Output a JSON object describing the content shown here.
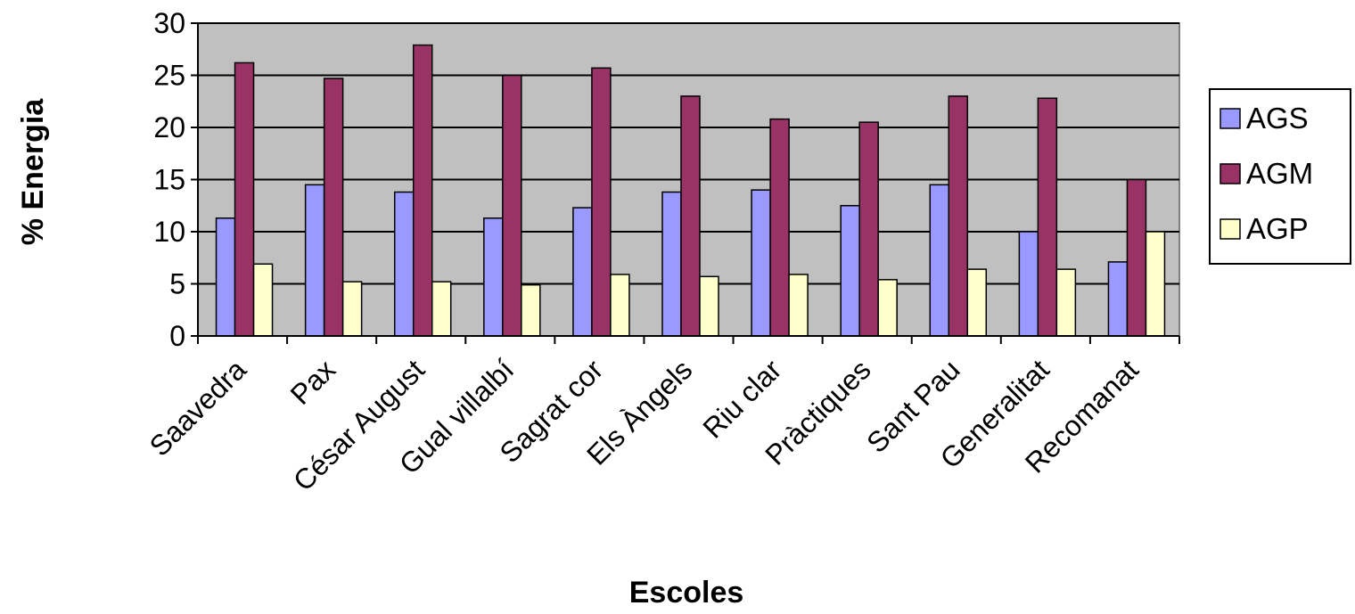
{
  "chart_data": {
    "type": "bar",
    "title": "",
    "xlabel": "Escoles",
    "ylabel": "% Energia",
    "ylim": [
      0,
      30
    ],
    "yticks": [
      0,
      5,
      10,
      15,
      20,
      25,
      30
    ],
    "grid": true,
    "legend_position": "right",
    "plot_background": "#c0c0c0",
    "categories": [
      "Saavedra",
      "Pax",
      "César August",
      "Gual villalbí",
      "Sagrat cor",
      "Els Àngels",
      "Riu clar",
      "Pràctiques",
      "Sant Pau",
      "Generalitat",
      "Recomanat"
    ],
    "series": [
      {
        "name": "AGS",
        "color": "#9999ff",
        "values": [
          11.3,
          14.5,
          13.8,
          11.3,
          12.3,
          13.8,
          14.0,
          12.5,
          14.5,
          10.0,
          7.1
        ]
      },
      {
        "name": "AGM",
        "color": "#993366",
        "values": [
          26.2,
          24.7,
          27.9,
          25.0,
          25.7,
          23.0,
          20.8,
          20.5,
          23.0,
          22.8,
          15.0
        ]
      },
      {
        "name": "AGP",
        "color": "#ffffcc",
        "values": [
          6.9,
          5.2,
          5.2,
          4.9,
          5.9,
          5.7,
          5.9,
          5.4,
          6.4,
          6.4,
          10.0
        ]
      }
    ]
  }
}
